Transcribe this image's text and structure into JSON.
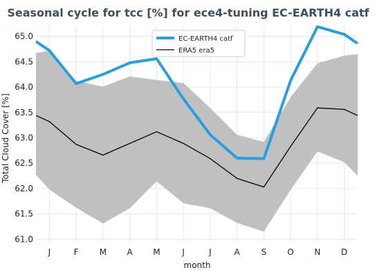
{
  "chart_data": {
    "type": "line",
    "title": "Seasonal cycle for tcc [%] for ece4-tuning EC-EARTH4 catf",
    "xlabel": "month",
    "ylabel": "Total Cloud Cover [%]",
    "categories": [
      "J",
      "F",
      "M",
      "A",
      "M",
      "J",
      "J",
      "A",
      "S",
      "O",
      "N",
      "D"
    ],
    "ylim": [
      60.95,
      65.2
    ],
    "yticks": [
      "61.0",
      "61.5",
      "62.0",
      "62.5",
      "63.0",
      "63.5",
      "64.0",
      "64.5",
      "65.0"
    ],
    "grid": true,
    "legend_position": "top-center",
    "series": [
      {
        "name": "EC-EARTH4 catf",
        "color": "#2a9de0",
        "values": [
          64.72,
          64.07,
          64.25,
          64.48,
          64.56,
          63.77,
          63.06,
          62.6,
          62.59,
          64.13,
          65.19,
          65.04
        ],
        "edge_values": [
          64.9,
          64.86
        ]
      },
      {
        "name": "ERA5 era5",
        "color": "#000000",
        "values": [
          63.32,
          62.87,
          62.66,
          62.89,
          63.12,
          62.89,
          62.59,
          62.2,
          62.03,
          62.83,
          63.59,
          63.56
        ],
        "edge_values": [
          63.44,
          63.44
        ]
      }
    ],
    "band": {
      "color": "#c0c0c0",
      "upper": [
        64.72,
        64.12,
        64.01,
        64.21,
        64.14,
        64.08,
        63.59,
        63.06,
        62.92,
        63.8,
        64.47,
        64.62
      ],
      "lower": [
        61.98,
        61.62,
        61.31,
        61.61,
        62.14,
        61.71,
        61.61,
        61.32,
        61.15,
        61.97,
        62.73,
        62.52
      ],
      "upper_edge": [
        64.67,
        64.65
      ],
      "lower_edge": [
        62.27,
        62.25
      ]
    }
  }
}
